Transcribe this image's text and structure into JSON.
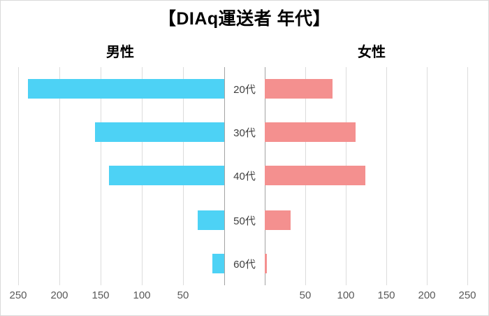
{
  "title": "【DIAq運送者 年代】",
  "chart_data": {
    "type": "bar",
    "subtype": "population-pyramid",
    "title": "【DIAq運送者 年代】",
    "categories": [
      "20代",
      "30代",
      "40代",
      "50代",
      "60代"
    ],
    "series": [
      {
        "name": "男性",
        "side": "left",
        "color": "#4dd2f5",
        "values": [
          238,
          157,
          140,
          32,
          14
        ]
      },
      {
        "name": "女性",
        "side": "right",
        "color": "#f4908f",
        "values": [
          84,
          112,
          124,
          32,
          3
        ]
      }
    ],
    "axis": {
      "max": 250,
      "tick_step": 50,
      "ticks": [
        50,
        100,
        150,
        200,
        250
      ],
      "left_tick_labels": [
        "250",
        "200",
        "150",
        "100",
        "50"
      ],
      "right_tick_labels": [
        "50",
        "100",
        "150",
        "200",
        "250"
      ]
    },
    "grid": true,
    "legend_position": "top-as-side-labels",
    "colors": {
      "gridline": "#dcdcdc",
      "axis_line": "#a3a3a3",
      "tick_text": "#595959",
      "category_text": "#3f3f3f",
      "title_text": "#000000",
      "background": "#ffffff"
    }
  }
}
